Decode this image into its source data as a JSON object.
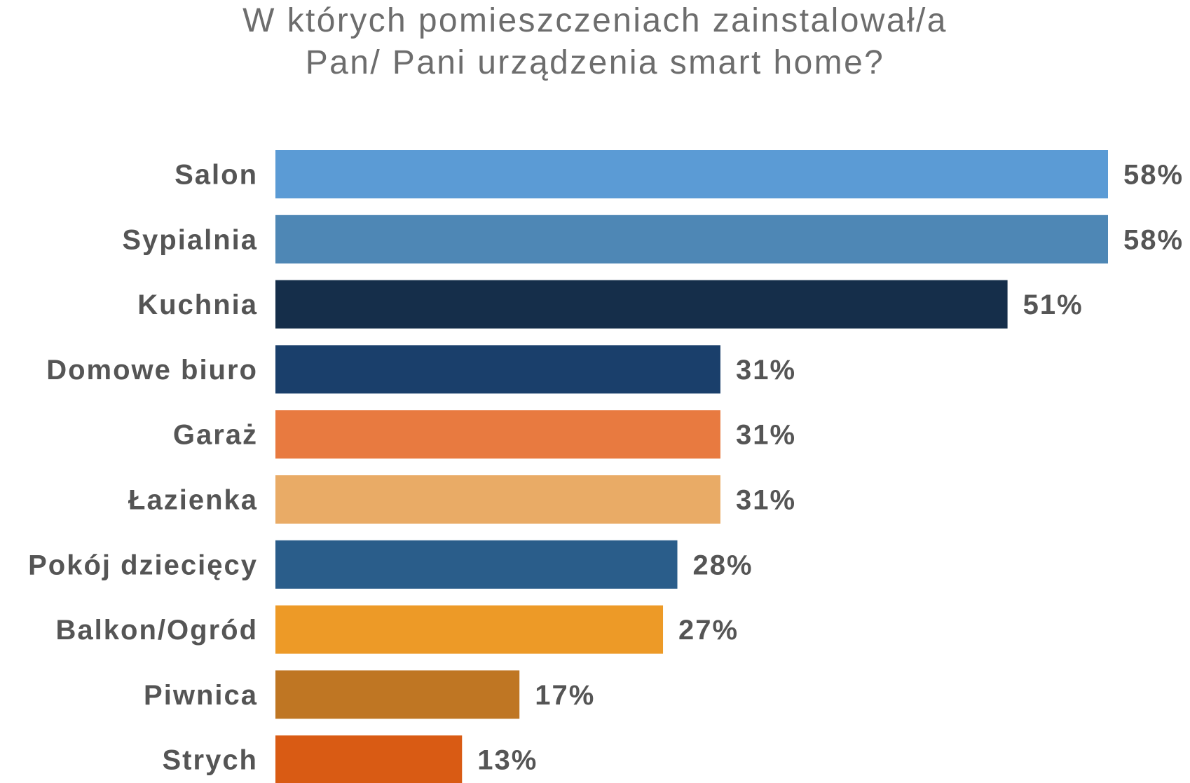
{
  "chart_data": {
    "type": "bar",
    "orientation": "horizontal",
    "title_lines": [
      "W których pomieszczeniach zainstalował/a",
      "Pan/ Pani urządzenia smart home?"
    ],
    "categories": [
      "Salon",
      "Sypialnia",
      "Kuchnia",
      "Domowe biuro",
      "Garaż",
      "Łazienka",
      "Pokój dziecięcy",
      "Balkon/Ogród",
      "Piwnica",
      "Strych"
    ],
    "values": [
      58,
      58,
      51,
      31,
      31,
      31,
      28,
      27,
      17,
      13
    ],
    "value_labels": [
      "58%",
      "58%",
      "51%",
      "31%",
      "31%",
      "31%",
      "28%",
      "27%",
      "17%",
      "13%"
    ],
    "bar_colors": [
      "#5b9bd5",
      "#4e87b5",
      "#152e4a",
      "#1a3f6b",
      "#e87a40",
      "#e9ab66",
      "#2a5d8a",
      "#ed9a27",
      "#bf7623",
      "#d95b14"
    ],
    "unit": "%",
    "xlim": [
      0,
      58
    ],
    "grid": false,
    "legend": "none"
  }
}
